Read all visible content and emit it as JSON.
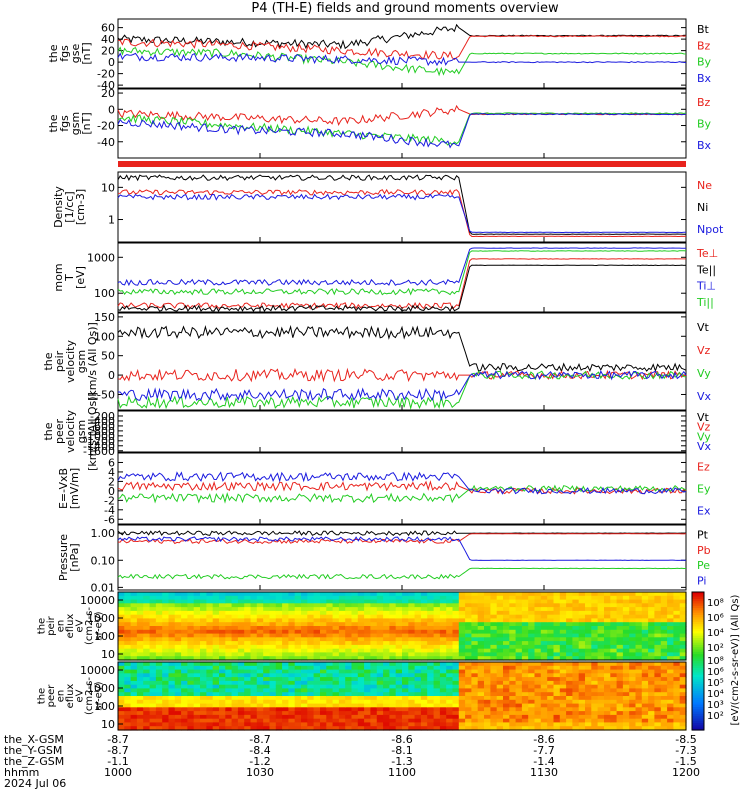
{
  "title": "P4 (TH-E) fields and ground moments overview",
  "colors": {
    "black": "#000000",
    "red": "#e8231d",
    "green": "#22cc22",
    "blue": "#1a1adf"
  },
  "chart_data": [
    {
      "type": "line",
      "panel": "fgs_gse",
      "ylabel": [
        "the",
        "fgs",
        "gse",
        "[nT]"
      ],
      "ylim": [
        -45,
        75
      ],
      "yticks": [
        60,
        40,
        20,
        0,
        -20,
        -40
      ],
      "series": [
        {
          "name": "Bt",
          "color": "black",
          "levels_before": [
            40,
            35,
            30,
            60
          ],
          "level_after": 46
        },
        {
          "name": "Bz",
          "color": "red",
          "levels_before": [
            35,
            30,
            20,
            10
          ],
          "level_after": 45
        },
        {
          "name": "By",
          "color": "green",
          "levels_before": [
            20,
            15,
            0,
            -20
          ],
          "level_after": 15
        },
        {
          "name": "Bx",
          "color": "blue",
          "levels_before": [
            10,
            8,
            5,
            0
          ],
          "level_after": 0
        }
      ]
    },
    {
      "type": "line",
      "panel": "fgs_gsm",
      "ylabel": [
        "the",
        "fgs",
        "gsm",
        "[nT]"
      ],
      "ylim": [
        -60,
        25
      ],
      "yticks": [
        20,
        0,
        -20,
        -40
      ],
      "series": [
        {
          "name": "Bz",
          "color": "red",
          "levels_before": [
            -5,
            -10,
            -15,
            0
          ],
          "level_after": -6
        },
        {
          "name": "By",
          "color": "green",
          "levels_before": [
            -10,
            -20,
            -30,
            -40
          ],
          "level_after": -5
        },
        {
          "name": "Bx",
          "color": "blue",
          "levels_before": [
            -15,
            -25,
            -30,
            -45
          ],
          "level_after": -6
        }
      ]
    },
    {
      "type": "line",
      "panel": "density",
      "scale": "log",
      "ylabel": [
        "Density",
        "[1/cc]",
        "[cm-3]"
      ],
      "ylim": [
        0.2,
        30
      ],
      "yticks": [
        10,
        1
      ],
      "series": [
        {
          "name": "Ne",
          "color": "red",
          "level_before": 7,
          "level_after": 0.3
        },
        {
          "name": "Ni",
          "color": "black",
          "level_before": 20,
          "level_after": 0.35
        },
        {
          "name": "Npot",
          "color": "blue",
          "level_before": 5,
          "level_after": 0.4
        }
      ]
    },
    {
      "type": "line",
      "panel": "temperature",
      "scale": "log",
      "ylabel": [
        "mom",
        "T",
        "[eV]"
      ],
      "ylim": [
        30,
        2500
      ],
      "yticks": [
        1000,
        100
      ],
      "series": [
        {
          "name": "Te⊥",
          "color": "red",
          "level_before": 45,
          "level_after": 900
        },
        {
          "name": "Te||",
          "color": "black",
          "level_before": 38,
          "level_after": 600
        },
        {
          "name": "Ti⊥",
          "color": "blue",
          "level_before": 200,
          "level_after": 1800
        },
        {
          "name": "Ti||",
          "color": "green",
          "level_before": 110,
          "level_after": 1500
        }
      ]
    },
    {
      "type": "line",
      "panel": "peir_velocity",
      "ylabel": [
        "the",
        "peir",
        "velocity",
        "gsm",
        "[km/s (All Qs)]"
      ],
      "ylim": [
        -90,
        160
      ],
      "yticks": [
        150,
        100,
        50,
        0,
        -50
      ],
      "series": [
        {
          "name": "Vt",
          "color": "black",
          "level_before": 110,
          "level_after": 20
        },
        {
          "name": "Vz",
          "color": "red",
          "level_before": 0,
          "level_after": 0
        },
        {
          "name": "Vy",
          "color": "green",
          "level_before": -70,
          "level_after": 0
        },
        {
          "name": "Vx",
          "color": "blue",
          "level_before": -50,
          "level_after": 0
        }
      ]
    },
    {
      "type": "line",
      "panel": "peer_velocity",
      "ylabel": [
        "the",
        "peer",
        "velocity",
        "gsm",
        "[km/s (All Qs)]"
      ],
      "ylim": [
        -1650,
        0
      ],
      "yticks": [
        -200,
        -400,
        -600,
        -800,
        -1000,
        -1200,
        -1400,
        -1600
      ],
      "series": [
        {
          "name": "Vt",
          "color": "black"
        },
        {
          "name": "Vz",
          "color": "red"
        },
        {
          "name": "Vy",
          "color": "green"
        },
        {
          "name": "Vx",
          "color": "blue"
        }
      ]
    },
    {
      "type": "line",
      "panel": "e_field",
      "ylabel": [
        "E=-VxB",
        "[mV/m]"
      ],
      "ylim": [
        -7,
        8
      ],
      "yticks": [
        6,
        4,
        2,
        0,
        -2,
        -4,
        -6
      ],
      "series": [
        {
          "name": "Ez",
          "color": "red",
          "level_before": 1,
          "level_after": 0
        },
        {
          "name": "Ey",
          "color": "green",
          "level_before": -1.5,
          "level_after": 0.5
        },
        {
          "name": "Ex",
          "color": "blue",
          "level_before": 3,
          "level_after": 0
        }
      ]
    },
    {
      "type": "line",
      "panel": "pressure",
      "scale": "log",
      "ylabel": [
        "Pressure",
        "[nPa]"
      ],
      "ylim": [
        0.008,
        2
      ],
      "ytick_labels": [
        "1.00",
        "0.10",
        "0.01"
      ],
      "yticks": [
        1.0,
        0.1,
        0.01
      ],
      "series": [
        {
          "name": "Pt",
          "color": "black",
          "level_before": 1.0,
          "level_after": 1.0
        },
        {
          "name": "Pb",
          "color": "red",
          "level_before": 0.5,
          "level_after": 0.95
        },
        {
          "name": "Pe",
          "color": "green",
          "level_before": 0.025,
          "level_after": 0.05
        },
        {
          "name": "Pi",
          "color": "blue",
          "level_before": 0.6,
          "level_after": 0.1
        }
      ]
    },
    {
      "type": "heatmap",
      "panel": "peir_spectrogram",
      "scale": "log",
      "ylabel": [
        "the",
        "peir",
        "en",
        "eflux",
        "eV",
        "(cm2-s-",
        "sr-eV)"
      ],
      "ytick_labels": [
        "10000",
        "1000",
        "100",
        "10"
      ]
    },
    {
      "type": "heatmap",
      "panel": "peer_spectrogram",
      "scale": "log",
      "ylabel": [
        "the",
        "peer",
        "en",
        "eflux",
        "eV",
        "(cm2-s-",
        "sr-eV)"
      ],
      "ytick_labels": [
        "10000",
        "1000",
        "100",
        "10"
      ]
    }
  ],
  "colorbar": {
    "label": "[eV/(cm2-s-sr-eV)] (All Qs)",
    "tick_labels": [
      "10⁸",
      "10⁶",
      "10⁴",
      "10²",
      "10⁸",
      "10⁶",
      "10⁵",
      "10⁴",
      "10³",
      "10²"
    ]
  },
  "xaxis": {
    "row_labels": [
      "the_X-GSM",
      "the_Y-GSM",
      "the_Z-GSM",
      "hhmm",
      "2024 Jul 06"
    ],
    "ticks": [
      {
        "x": "-8.7",
        "y": "-8.7",
        "z": "-1.1",
        "t": "1000"
      },
      {
        "x": "-8.7",
        "y": "-8.4",
        "z": "-1.2",
        "t": "1030"
      },
      {
        "x": "-8.6",
        "y": "-8.1",
        "z": "-1.3",
        "t": "1100"
      },
      {
        "x": "-8.6",
        "y": "-7.7",
        "z": "-1.4",
        "t": "1130"
      },
      {
        "x": "-8.5",
        "y": "-7.3",
        "z": "-1.5",
        "t": "1200"
      }
    ]
  }
}
